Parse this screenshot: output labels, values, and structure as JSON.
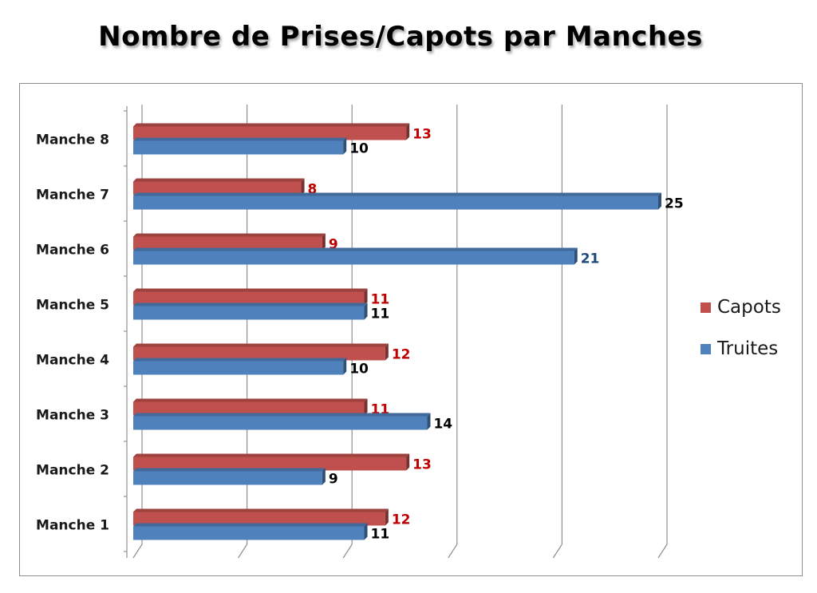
{
  "chart_data": {
    "type": "bar",
    "orientation": "horizontal",
    "title": "Nombre de Prises/Capots par Manches",
    "categories": [
      "Manche 1",
      "Manche 2",
      "Manche 3",
      "Manche 4",
      "Manche 5",
      "Manche 6",
      "Manche 7",
      "Manche 8"
    ],
    "series": [
      {
        "name": "Capots",
        "values": [
          12,
          13,
          11,
          12,
          11,
          9,
          8,
          13
        ],
        "color": "#C0504D",
        "label_color": "#C00000"
      },
      {
        "name": "Truites",
        "values": [
          11,
          9,
          14,
          10,
          11,
          21,
          25,
          10
        ],
        "color": "#4F81BD",
        "label_color": "#000000"
      }
    ],
    "highlighted_label_color": "#1F497D",
    "xlim": [
      0,
      25
    ],
    "x_gridlines": [
      0,
      5,
      10,
      15,
      20,
      25
    ],
    "x_tick_labels_shown": false,
    "grid": true,
    "legend_placement": "right",
    "xlabel": "",
    "ylabel": ""
  }
}
